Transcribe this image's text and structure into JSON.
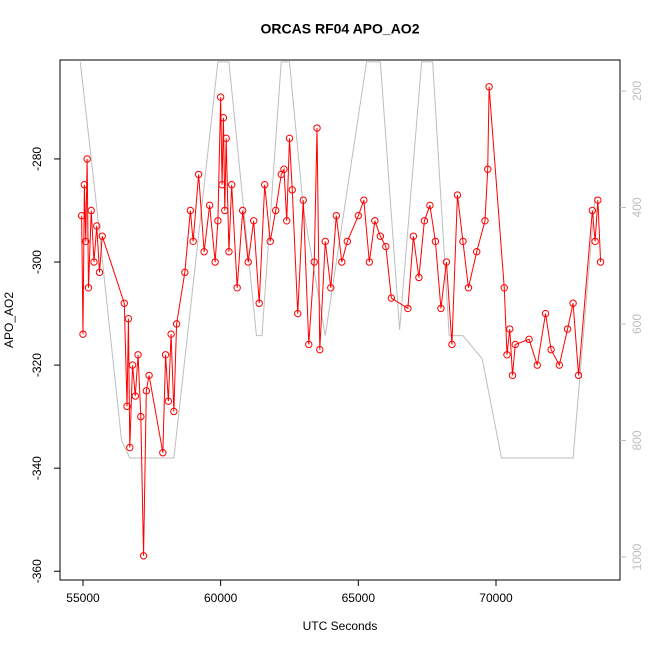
{
  "chart_data": {
    "type": "line",
    "title": "ORCAS RF04 APO_AO2",
    "x_label": "UTC Seconds",
    "y_label": "APO_AO2",
    "xlim": [
      54165,
      74504
    ],
    "xticks": [
      55000,
      60000,
      65000,
      70000
    ],
    "ylim": [
      -361.7,
      -260.8
    ],
    "yticks": [
      -360,
      -340,
      -320,
      -300,
      -280
    ],
    "y2lim": [
      1039.5,
      146.8
    ],
    "y2ticks": [
      200,
      400,
      600,
      800,
      1000
    ],
    "series": [
      {
        "color": "#ff0000",
        "markers": true,
        "x": [
          54950,
          55000,
          55050,
          55100,
          55150,
          55200,
          55300,
          55400,
          55500,
          55600,
          55700,
          56500,
          56600,
          56650,
          56700,
          56800,
          56900,
          57000,
          57100,
          57200,
          57300,
          57400,
          57900,
          58000,
          58100,
          58200,
          58300,
          58400,
          58700,
          58900,
          59000,
          59200,
          59400,
          59600,
          59800,
          59900,
          60000,
          60050,
          60100,
          60150,
          60200,
          60300,
          60400,
          60600,
          60800,
          61000,
          61200,
          61400,
          61600,
          61800,
          62000,
          62200,
          62300,
          62400,
          62500,
          62600,
          62800,
          63000,
          63200,
          63400,
          63500,
          63600,
          63800,
          64000,
          64200,
          64400,
          64600,
          65000,
          65200,
          65400,
          65600,
          65800,
          66000,
          66200,
          66800,
          67000,
          67200,
          67400,
          67600,
          67800,
          68000,
          68200,
          68400,
          68600,
          68800,
          69000,
          69300,
          69600,
          69700,
          69750,
          70300,
          70400,
          70500,
          70600,
          70700,
          71200,
          71500,
          71800,
          72000,
          72300,
          72600,
          72800,
          73000,
          73500,
          73600,
          73700,
          73800
        ],
        "values": [
          -291,
          -314,
          -285,
          -296,
          -280,
          -305,
          -290,
          -300,
          -293,
          -302,
          -295,
          -308,
          -328,
          -311,
          -336,
          -320,
          -326,
          -318,
          -330,
          -357,
          -325,
          -322,
          -337,
          -318,
          -327,
          -314,
          -329,
          -312,
          -302,
          -290,
          -296,
          -283,
          -298,
          -289,
          -300,
          -292,
          -268,
          -285,
          -272,
          -290,
          -276,
          -298,
          -285,
          -305,
          -290,
          -300,
          -292,
          -308,
          -285,
          -296,
          -290,
          -283,
          -282,
          -292,
          -276,
          -286,
          -310,
          -288,
          -316,
          -300,
          -274,
          -317,
          -296,
          -305,
          -291,
          -300,
          -296,
          -291,
          -288,
          -300,
          -292,
          -295,
          -297,
          -307,
          -309,
          -295,
          -303,
          -292,
          -289,
          -296,
          -309,
          -300,
          -316,
          -287,
          -296,
          -305,
          -298,
          -292,
          -282,
          -266,
          -305,
          -318,
          -313,
          -322,
          -316,
          -315,
          -320,
          -310,
          -317,
          -320,
          -313,
          -308,
          -322,
          -290,
          -296,
          -288,
          -300
        ]
      },
      {
        "color": "#bebebe",
        "axis": "y2",
        "markers": false,
        "x": [
          54900,
          55500,
          56400,
          56700,
          58300,
          59900,
          60300,
          61300,
          61500,
          62200,
          62500,
          63000,
          63800,
          64500,
          65300,
          65800,
          66500,
          67300,
          67700,
          68300,
          68800,
          69500,
          70200,
          72800,
          73600
        ],
        "values": [
          150,
          400,
          800,
          830,
          830,
          150,
          150,
          620,
          620,
          150,
          150,
          400,
          620,
          400,
          150,
          150,
          610,
          150,
          150,
          620,
          620,
          660,
          830,
          830,
          380
        ]
      }
    ]
  }
}
